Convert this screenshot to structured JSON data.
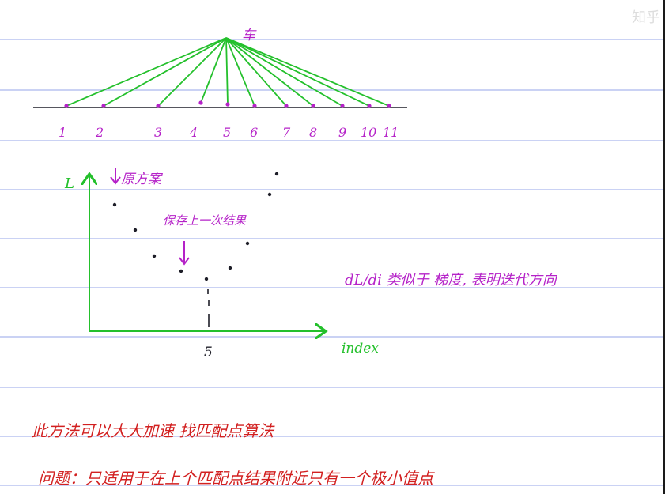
{
  "colors": {
    "rule": "#aab8ee",
    "green": "#24c02c",
    "purple": "#b522c8",
    "red": "#d22020",
    "ink": "#1e1e28"
  },
  "top_diagram": {
    "apex_label": "车",
    "tick_labels": [
      "1",
      "2",
      "3",
      "4",
      "5",
      "6",
      "7",
      "8",
      "9",
      "10",
      "11"
    ]
  },
  "plot": {
    "y_axis_label": "L",
    "x_axis_label": "index",
    "x_marker_label": "5",
    "annotation_top": "原方案",
    "annotation_mid": "保存上一次结果"
  },
  "side_note": "dL/di 类似于 梯度, 表明迭代方向",
  "notes": {
    "line1": "此方法可以大大加速 找匹配点算法",
    "line2": "问题：只适用于在上个匹配点结果附近只有一个极小值点"
  },
  "watermark": "知乎"
}
